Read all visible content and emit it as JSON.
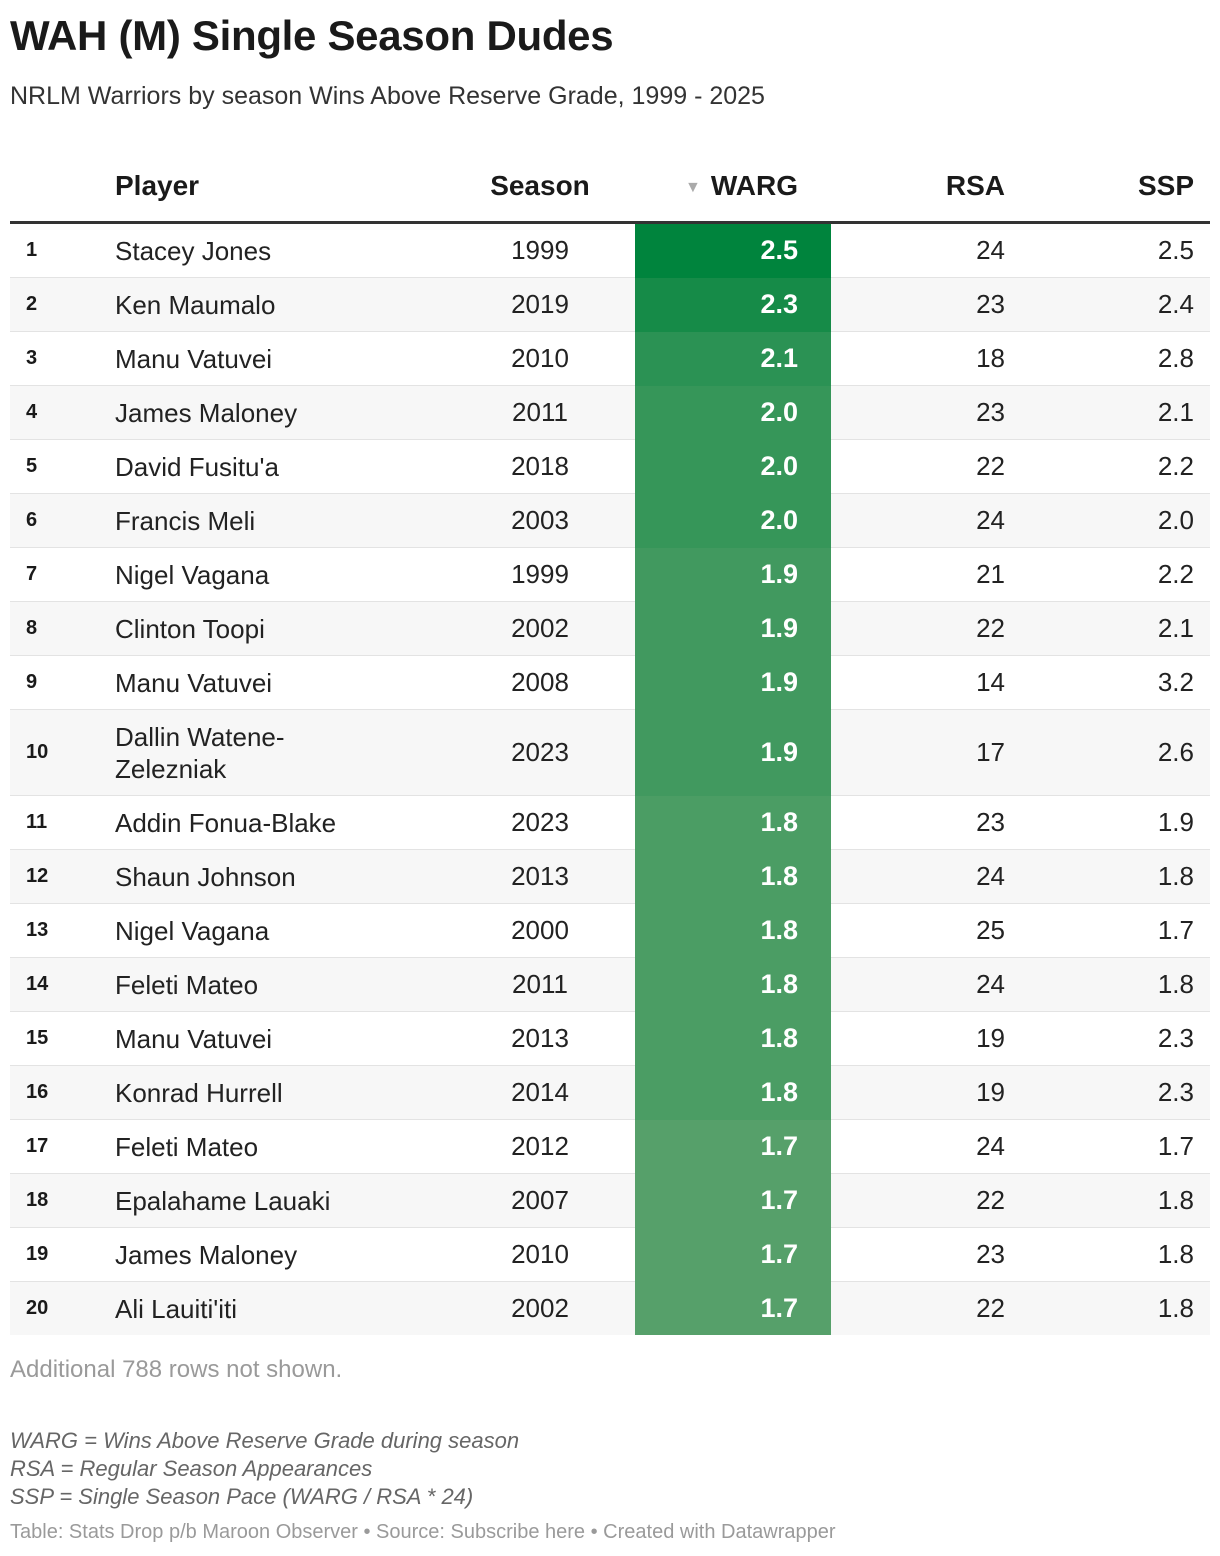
{
  "header": {
    "title": "WAH (M) Single Season Dudes",
    "subtitle": "NRLM Warriors by season Wins Above Reserve Grade, 1999 - 2025"
  },
  "columns": {
    "rank": "",
    "player": "Player",
    "season": "Season",
    "warg": "WARG",
    "rsa": "RSA",
    "ssp": "SSP",
    "sort_icon": "▼"
  },
  "colors": {
    "header_rule": "#333333",
    "row_alt": "#f7f7f7",
    "warg_max": "#00843d",
    "warg_min": "#56a06a",
    "muted_text": "#9a9a9a"
  },
  "chart_data": {
    "type": "table",
    "sort": {
      "column": "WARG",
      "order": "descending"
    },
    "color_scale": {
      "column": "WARG",
      "domain": [
        1.7,
        2.5
      ]
    },
    "rows": [
      {
        "rank": "1",
        "player": "Stacey Jones",
        "season": "1999",
        "warg": "2.5",
        "rsa": "24",
        "ssp": "2.5"
      },
      {
        "rank": "2",
        "player": "Ken Maumalo",
        "season": "2019",
        "warg": "2.3",
        "rsa": "23",
        "ssp": "2.4"
      },
      {
        "rank": "3",
        "player": "Manu Vatuvei",
        "season": "2010",
        "warg": "2.1",
        "rsa": "18",
        "ssp": "2.8"
      },
      {
        "rank": "4",
        "player": "James Maloney",
        "season": "2011",
        "warg": "2.0",
        "rsa": "23",
        "ssp": "2.1"
      },
      {
        "rank": "5",
        "player": "David Fusitu'a",
        "season": "2018",
        "warg": "2.0",
        "rsa": "22",
        "ssp": "2.2"
      },
      {
        "rank": "6",
        "player": "Francis Meli",
        "season": "2003",
        "warg": "2.0",
        "rsa": "24",
        "ssp": "2.0"
      },
      {
        "rank": "7",
        "player": "Nigel Vagana",
        "season": "1999",
        "warg": "1.9",
        "rsa": "21",
        "ssp": "2.2"
      },
      {
        "rank": "8",
        "player": "Clinton Toopi",
        "season": "2002",
        "warg": "1.9",
        "rsa": "22",
        "ssp": "2.1"
      },
      {
        "rank": "9",
        "player": "Manu Vatuvei",
        "season": "2008",
        "warg": "1.9",
        "rsa": "14",
        "ssp": "3.2"
      },
      {
        "rank": "10",
        "player": "Dallin Watene-Zelezniak",
        "season": "2023",
        "warg": "1.9",
        "rsa": "17",
        "ssp": "2.6"
      },
      {
        "rank": "11",
        "player": "Addin Fonua-Blake",
        "season": "2023",
        "warg": "1.8",
        "rsa": "23",
        "ssp": "1.9"
      },
      {
        "rank": "12",
        "player": "Shaun Johnson",
        "season": "2013",
        "warg": "1.8",
        "rsa": "24",
        "ssp": "1.8"
      },
      {
        "rank": "13",
        "player": "Nigel Vagana",
        "season": "2000",
        "warg": "1.8",
        "rsa": "25",
        "ssp": "1.7"
      },
      {
        "rank": "14",
        "player": "Feleti Mateo",
        "season": "2011",
        "warg": "1.8",
        "rsa": "24",
        "ssp": "1.8"
      },
      {
        "rank": "15",
        "player": "Manu Vatuvei",
        "season": "2013",
        "warg": "1.8",
        "rsa": "19",
        "ssp": "2.3"
      },
      {
        "rank": "16",
        "player": "Konrad Hurrell",
        "season": "2014",
        "warg": "1.8",
        "rsa": "19",
        "ssp": "2.3"
      },
      {
        "rank": "17",
        "player": "Feleti Mateo",
        "season": "2012",
        "warg": "1.7",
        "rsa": "24",
        "ssp": "1.7"
      },
      {
        "rank": "18",
        "player": "Epalahame Lauaki",
        "season": "2007",
        "warg": "1.7",
        "rsa": "22",
        "ssp": "1.8"
      },
      {
        "rank": "19",
        "player": "James Maloney",
        "season": "2010",
        "warg": "1.7",
        "rsa": "23",
        "ssp": "1.8"
      },
      {
        "rank": "20",
        "player": "Ali Lauiti'iti",
        "season": "2002",
        "warg": "1.7",
        "rsa": "22",
        "ssp": "1.8"
      }
    ]
  },
  "more_rows": "Additional 788 rows not shown.",
  "notes": [
    "WARG = Wins Above Reserve Grade during season",
    "RSA = Regular Season Appearances",
    "SSP = Single Season Pace (WARG / RSA * 24)"
  ],
  "footer": "Table: Stats Drop p/b Maroon Observer • Source: Subscribe here • Created with Datawrapper"
}
